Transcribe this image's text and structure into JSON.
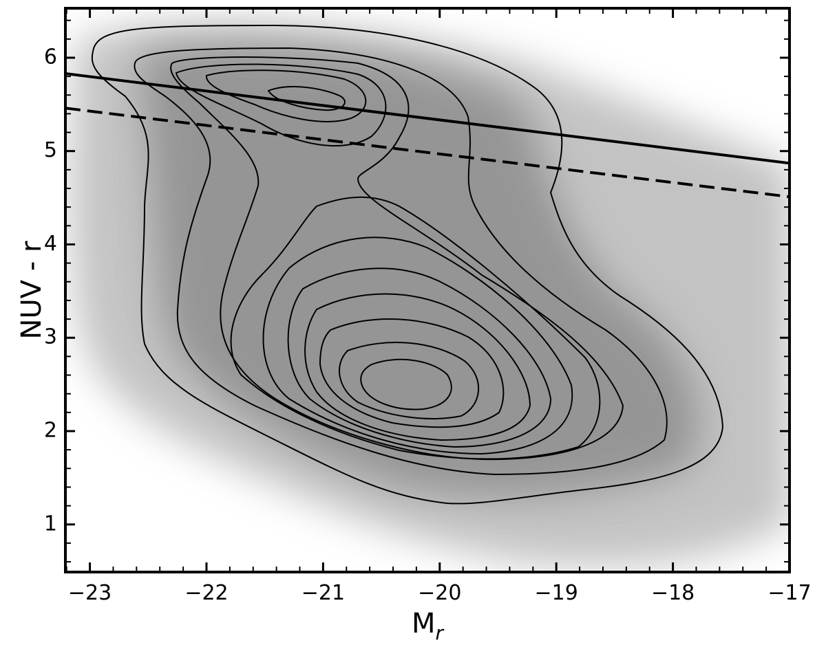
{
  "chart_data": {
    "type": "line",
    "xlabel": {
      "text": "M",
      "sub": "r"
    },
    "ylabel": "NUV - r",
    "xlim": [
      -23.21,
      -17
    ],
    "ylim": [
      0.49,
      6.53
    ],
    "xticks": [
      {
        "value": -23,
        "label": "−23"
      },
      {
        "value": -22,
        "label": "−22"
      },
      {
        "value": -21,
        "label": "−21"
      },
      {
        "value": -20,
        "label": "−20"
      },
      {
        "value": -19,
        "label": "−19"
      },
      {
        "value": -18,
        "label": "−18"
      },
      {
        "value": -17,
        "label": "−17"
      }
    ],
    "yticks": [
      1,
      2,
      3,
      4,
      5,
      6
    ],
    "xminorticks": [
      -23.2,
      -22.8,
      -22.6,
      -22.4,
      -22.2,
      -21.8,
      -21.6,
      -21.4,
      -21.2,
      -20.8,
      -20.6,
      -20.4,
      -20.2,
      -19.8,
      -19.6,
      -19.4,
      -19.2,
      -18.8,
      -18.6,
      -18.4,
      -18.2,
      -17.8,
      -17.6,
      -17.4,
      -17.2
    ],
    "yminorticks": [
      0.6,
      0.8,
      1.2,
      1.4,
      1.6,
      1.8,
      2.2,
      2.4,
      2.6,
      2.8,
      3.2,
      3.4,
      3.6,
      3.8,
      4.2,
      4.4,
      4.6,
      4.8,
      5.2,
      5.4,
      5.6,
      5.8,
      6.2,
      6.4
    ],
    "series": [
      {
        "color": "#000000",
        "dash": "solid",
        "x": [
          -23.21,
          -17
        ],
        "values": [
          5.83,
          4.87
        ]
      },
      {
        "color": "#000000",
        "dash": "dashed",
        "x": [
          -23.21,
          -17
        ],
        "values": [
          5.46,
          4.51
        ]
      }
    ]
  }
}
